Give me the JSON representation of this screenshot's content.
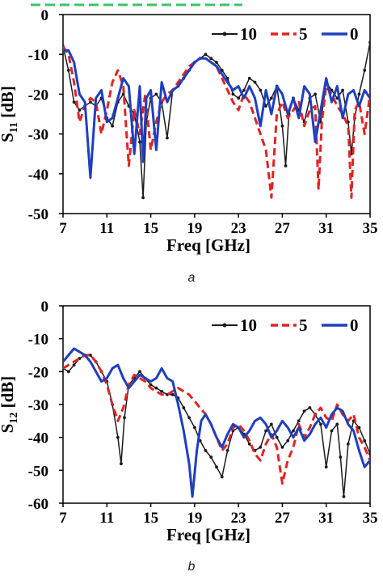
{
  "top_hint_color": "#3cc26a",
  "chart_data": [
    {
      "type": "line",
      "panel_caption": "a",
      "xlabel": "Freq [GHz]",
      "ylabel_main": "S",
      "ylabel_sub": "11",
      "ylabel_unit": " [dB]",
      "xlim": [
        7,
        35
      ],
      "ylim": [
        -50,
        0
      ],
      "x_ticks": [
        7,
        11,
        15,
        19,
        23,
        27,
        31,
        35
      ],
      "x_tick_labels": [
        "7",
        "11",
        "15",
        "19",
        "23",
        "27",
        "31",
        "35"
      ],
      "y_ticks": [
        0,
        -10,
        -20,
        -30,
        -40,
        -50
      ],
      "y_tick_labels": [
        "0",
        "-10",
        "-20",
        "-30",
        "-40",
        "-50"
      ],
      "legend_position": "top-right",
      "grid": false,
      "series": [
        {
          "name": "10",
          "color": "#1a1a1a",
          "style": "solid-markers",
          "x": [
            7,
            7.5,
            8,
            8.5,
            9,
            9.5,
            10,
            10.5,
            11,
            11.5,
            12,
            12.5,
            13,
            13.5,
            14,
            14.3,
            14.6,
            15,
            15.5,
            16,
            16.5,
            17,
            17.5,
            18,
            18.5,
            19,
            19.5,
            20,
            20.5,
            21,
            21.5,
            22,
            22.5,
            23,
            23.5,
            24,
            24.5,
            25,
            25.5,
            26,
            26.5,
            27,
            27.3,
            27.6,
            28,
            28.5,
            29,
            29.5,
            30,
            30.5,
            31,
            31.5,
            32,
            32.5,
            33,
            33.3,
            33.6,
            34,
            34.5,
            35
          ],
          "y": [
            -8,
            -14,
            -22,
            -24,
            -23,
            -22,
            -23,
            -21,
            -26,
            -28,
            -22,
            -20,
            -23,
            -25,
            -32,
            -46,
            -27,
            -21,
            -20,
            -22,
            -31,
            -19,
            -18,
            -16,
            -14,
            -12,
            -11,
            -10,
            -11,
            -12,
            -14,
            -16,
            -20,
            -21,
            -19,
            -16,
            -17,
            -19,
            -23,
            -21,
            -18,
            -28,
            -38,
            -25,
            -21,
            -24,
            -27,
            -21,
            -20,
            -27,
            -17,
            -19,
            -21,
            -19,
            -27,
            -35,
            -26,
            -20,
            -14,
            -7
          ]
        },
        {
          "name": "5",
          "color": "#e02424",
          "style": "dashed",
          "x": [
            7,
            7.5,
            8,
            8.5,
            9,
            9.5,
            10,
            10.5,
            11,
            11.5,
            12,
            12.5,
            13,
            13.5,
            14,
            14.5,
            15,
            15.5,
            16,
            16.5,
            17,
            17.5,
            18,
            18.5,
            19,
            19.5,
            20,
            20.5,
            21,
            21.5,
            22,
            22.5,
            23,
            23.5,
            24,
            24.5,
            25,
            25.5,
            26,
            26.5,
            27,
            27.5,
            28,
            28.5,
            29,
            29.5,
            30,
            30.3,
            30.6,
            31,
            31.5,
            32,
            32.5,
            33,
            33.3,
            33.6,
            34,
            34.5,
            35
          ],
          "y": [
            -8,
            -10,
            -17,
            -27,
            -23,
            -21,
            -22,
            -30,
            -24,
            -17,
            -14,
            -18,
            -38,
            -24,
            -30,
            -20,
            -34,
            -27,
            -22,
            -20,
            -19,
            -17,
            -15,
            -13,
            -12,
            -11,
            -11,
            -12,
            -13,
            -16,
            -19,
            -22,
            -24,
            -20,
            -22,
            -26,
            -30,
            -34,
            -46,
            -25,
            -22,
            -26,
            -24,
            -22,
            -28,
            -24,
            -23,
            -44,
            -27,
            -18,
            -20,
            -23,
            -25,
            -28,
            -46,
            -24,
            -22,
            -30,
            -20
          ]
        },
        {
          "name": "0",
          "color": "#1f3fbf",
          "style": "solid",
          "x": [
            7,
            7.5,
            8,
            8.5,
            9,
            9.5,
            10,
            10.5,
            11,
            11.5,
            12,
            12.5,
            13,
            13.5,
            14,
            14.3,
            14.6,
            15,
            15.5,
            16,
            16.5,
            17,
            17.5,
            18,
            18.5,
            19,
            19.5,
            20,
            20.5,
            21,
            21.5,
            22,
            22.5,
            23,
            23.5,
            24,
            24.5,
            25,
            25.5,
            26,
            26.5,
            27,
            27.5,
            28,
            28.5,
            29,
            29.5,
            30,
            30.5,
            31,
            31.5,
            32,
            32.5,
            33,
            33.5,
            34,
            34.5,
            35
          ],
          "y": [
            -9,
            -9,
            -12,
            -20,
            -22,
            -41,
            -21,
            -19,
            -27,
            -26,
            -21,
            -16,
            -18,
            -35,
            -18,
            -37,
            -21,
            -19,
            -34,
            -17,
            -22,
            -19,
            -18,
            -16,
            -14,
            -12,
            -11,
            -11,
            -12,
            -13,
            -15,
            -17,
            -19,
            -18,
            -21,
            -18,
            -21,
            -28,
            -19,
            -25,
            -18,
            -20,
            -25,
            -21,
            -26,
            -18,
            -20,
            -32,
            -24,
            -16,
            -22,
            -18,
            -26,
            -20,
            -19,
            -23,
            -19,
            -21
          ]
        }
      ]
    },
    {
      "type": "line",
      "panel_caption": "b",
      "xlabel": "Freq [GHz]",
      "ylabel_main": "S",
      "ylabel_sub": "12",
      "ylabel_unit": " [dB]",
      "xlim": [
        7,
        35
      ],
      "ylim": [
        -60,
        0
      ],
      "x_ticks": [
        7,
        11,
        15,
        19,
        23,
        27,
        31,
        35
      ],
      "x_tick_labels": [
        "7",
        "11",
        "15",
        "19",
        "23",
        "27",
        "31",
        "35"
      ],
      "y_ticks": [
        0,
        -10,
        -20,
        -30,
        -40,
        -50,
        -60
      ],
      "y_tick_labels": [
        "0",
        "-10",
        "-20",
        "-30",
        "-40",
        "-50",
        "-60"
      ],
      "legend_position": "top-right",
      "grid": false,
      "series": [
        {
          "name": "10",
          "color": "#1a1a1a",
          "style": "solid-markers",
          "x": [
            7,
            7.5,
            8,
            8.5,
            9,
            9.5,
            10,
            10.5,
            11,
            11.5,
            12,
            12.3,
            12.6,
            13,
            13.5,
            14,
            14.5,
            15,
            15.5,
            16,
            16.5,
            17,
            17.5,
            18,
            18.5,
            19,
            19.5,
            20,
            20.5,
            21,
            21.5,
            22,
            22.5,
            23,
            23.5,
            24,
            24.5,
            25,
            25.5,
            26,
            26.5,
            27,
            27.5,
            28,
            28.5,
            29,
            29.5,
            30,
            30.5,
            31,
            31.5,
            32,
            32.3,
            32.6,
            33,
            33.5,
            34,
            34.5,
            35
          ],
          "y": [
            -19,
            -20,
            -18,
            -16,
            -15,
            -15,
            -17,
            -20,
            -23,
            -30,
            -40,
            -48,
            -34,
            -24,
            -22,
            -20,
            -22,
            -24,
            -25,
            -26,
            -27,
            -27,
            -28,
            -31,
            -34,
            -37,
            -41,
            -44,
            -46,
            -49,
            -52,
            -44,
            -38,
            -37,
            -39,
            -42,
            -44,
            -43,
            -38,
            -36,
            -40,
            -43,
            -41,
            -38,
            -35,
            -32,
            -31,
            -33,
            -36,
            -49,
            -38,
            -36,
            -46,
            -58,
            -42,
            -35,
            -37,
            -41,
            -45
          ]
        },
        {
          "name": "5",
          "color": "#e02424",
          "style": "dashed",
          "x": [
            7,
            7.5,
            8,
            8.5,
            9,
            9.5,
            10,
            10.5,
            11,
            11.5,
            12,
            12.5,
            13,
            13.5,
            14,
            14.5,
            15,
            15.5,
            16,
            16.5,
            17,
            17.5,
            18,
            18.5,
            19,
            19.5,
            20,
            20.5,
            21,
            21.5,
            22,
            22.5,
            23,
            23.5,
            24,
            24.5,
            25,
            25.5,
            26,
            26.5,
            27,
            27.5,
            28,
            28.5,
            29,
            29.5,
            30,
            30.5,
            31,
            31.5,
            32,
            32.5,
            33,
            33.5,
            34,
            34.5,
            35
          ],
          "y": [
            -19,
            -18,
            -17,
            -16,
            -15,
            -15,
            -17,
            -20,
            -24,
            -30,
            -35,
            -31,
            -24,
            -21,
            -22,
            -23,
            -25,
            -26,
            -27,
            -27,
            -26,
            -25,
            -26,
            -27,
            -29,
            -31,
            -33,
            -36,
            -40,
            -44,
            -42,
            -37,
            -36,
            -38,
            -41,
            -45,
            -47,
            -42,
            -39,
            -43,
            -54,
            -47,
            -43,
            -36,
            -40,
            -37,
            -33,
            -31,
            -34,
            -35,
            -30,
            -33,
            -35,
            -33,
            -40,
            -43,
            -47
          ]
        },
        {
          "name": "0",
          "color": "#1f3fbf",
          "style": "solid",
          "x": [
            7,
            7.5,
            8,
            8.5,
            9,
            9.5,
            10,
            10.5,
            11,
            11.5,
            12,
            12.5,
            13,
            13.5,
            14,
            14.5,
            15,
            15.5,
            16,
            16.5,
            17,
            17.5,
            18,
            18.5,
            18.8,
            19.2,
            19.6,
            20,
            20.5,
            21,
            21.5,
            22,
            22.5,
            23,
            23.5,
            24,
            24.5,
            25,
            25.5,
            26,
            26.5,
            27,
            27.5,
            28,
            28.5,
            29,
            29.5,
            30,
            30.5,
            31,
            31.5,
            32,
            32.5,
            33,
            33.5,
            34,
            34.5,
            35
          ],
          "y": [
            -17,
            -15,
            -13,
            -14,
            -15,
            -17,
            -20,
            -23,
            -22,
            -19,
            -18,
            -22,
            -25,
            -23,
            -21,
            -22,
            -23,
            -22,
            -19,
            -22,
            -23,
            -30,
            -38,
            -48,
            -58,
            -44,
            -35,
            -33,
            -36,
            -40,
            -43,
            -39,
            -36,
            -37,
            -40,
            -38,
            -35,
            -34,
            -36,
            -40,
            -38,
            -35,
            -37,
            -40,
            -37,
            -41,
            -39,
            -36,
            -34,
            -37,
            -33,
            -31,
            -32,
            -36,
            -38,
            -44,
            -49,
            -47
          ]
        }
      ]
    }
  ]
}
